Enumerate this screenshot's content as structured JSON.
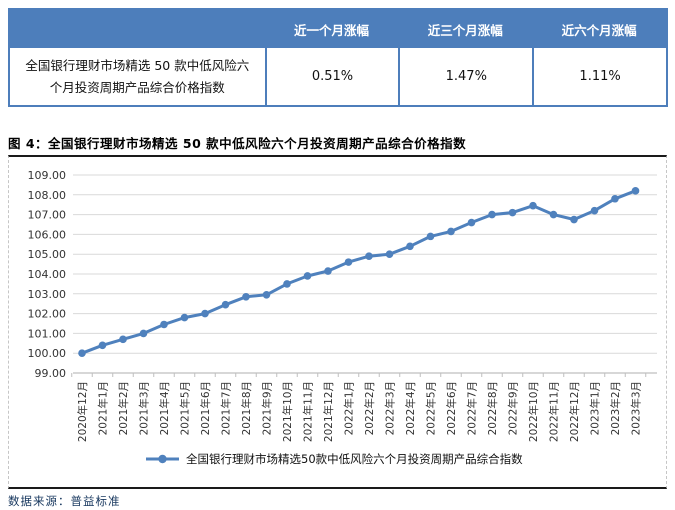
{
  "table": {
    "row_label": "全国银行理财市场精选 50 款中低风险六个月投资周期产品综合价格指数",
    "columns": [
      "近一个月涨幅",
      "近三个月涨幅",
      "近六个月涨幅"
    ],
    "values": [
      "0.51%",
      "1.47%",
      "1.11%"
    ]
  },
  "figure": {
    "caption": "图 4：全国银行理财市场精选 50 款中低风险六个月投资周期产品综合价格指数",
    "source": "数据来源：普益标准"
  },
  "chart_data": {
    "type": "line",
    "title": "全国银行理财市场精选 50 款中低风险六个月投资周期产品综合价格指数",
    "categories": [
      "2020年12月",
      "2021年1月",
      "2021年2月",
      "2021年3月",
      "2021年4月",
      "2021年5月",
      "2021年6月",
      "2021年7月",
      "2021年8月",
      "2021年9月",
      "2021年10月",
      "2021年11月",
      "2021年12月",
      "2022年1月",
      "2022年2月",
      "2022年3月",
      "2022年4月",
      "2022年5月",
      "2022年6月",
      "2022年7月",
      "2022年8月",
      "2022年9月",
      "2022年10月",
      "2022年11月",
      "2022年12月",
      "2023年1月",
      "2023年2月",
      "2023年3月"
    ],
    "series": [
      {
        "name": "全国银行理财市场精选50款中低风险六个月投资周期产品综合指数",
        "color": "#4F81BD",
        "values": [
          100.0,
          100.4,
          100.7,
          101.0,
          101.45,
          101.8,
          102.0,
          102.45,
          102.85,
          102.95,
          103.5,
          103.9,
          104.15,
          104.6,
          104.9,
          105.0,
          105.4,
          105.9,
          106.15,
          106.6,
          107.0,
          107.1,
          107.45,
          107.0,
          106.75,
          107.2,
          107.8,
          108.2
        ]
      }
    ],
    "ylim": [
      99,
      109
    ],
    "ytick_step": 1,
    "ytick_decimals": 2,
    "xlabel": "",
    "ylabel": "",
    "grid": true,
    "legend_position": "bottom"
  },
  "colors": {
    "table_header_bg": "#4D7EBB",
    "table_border": "#4D7EBB",
    "line": "#4F81BD",
    "gridline": "#D9D9D9",
    "axis": "#BFBFBF",
    "tick_label": "#333333",
    "source_text": "#17375E"
  }
}
